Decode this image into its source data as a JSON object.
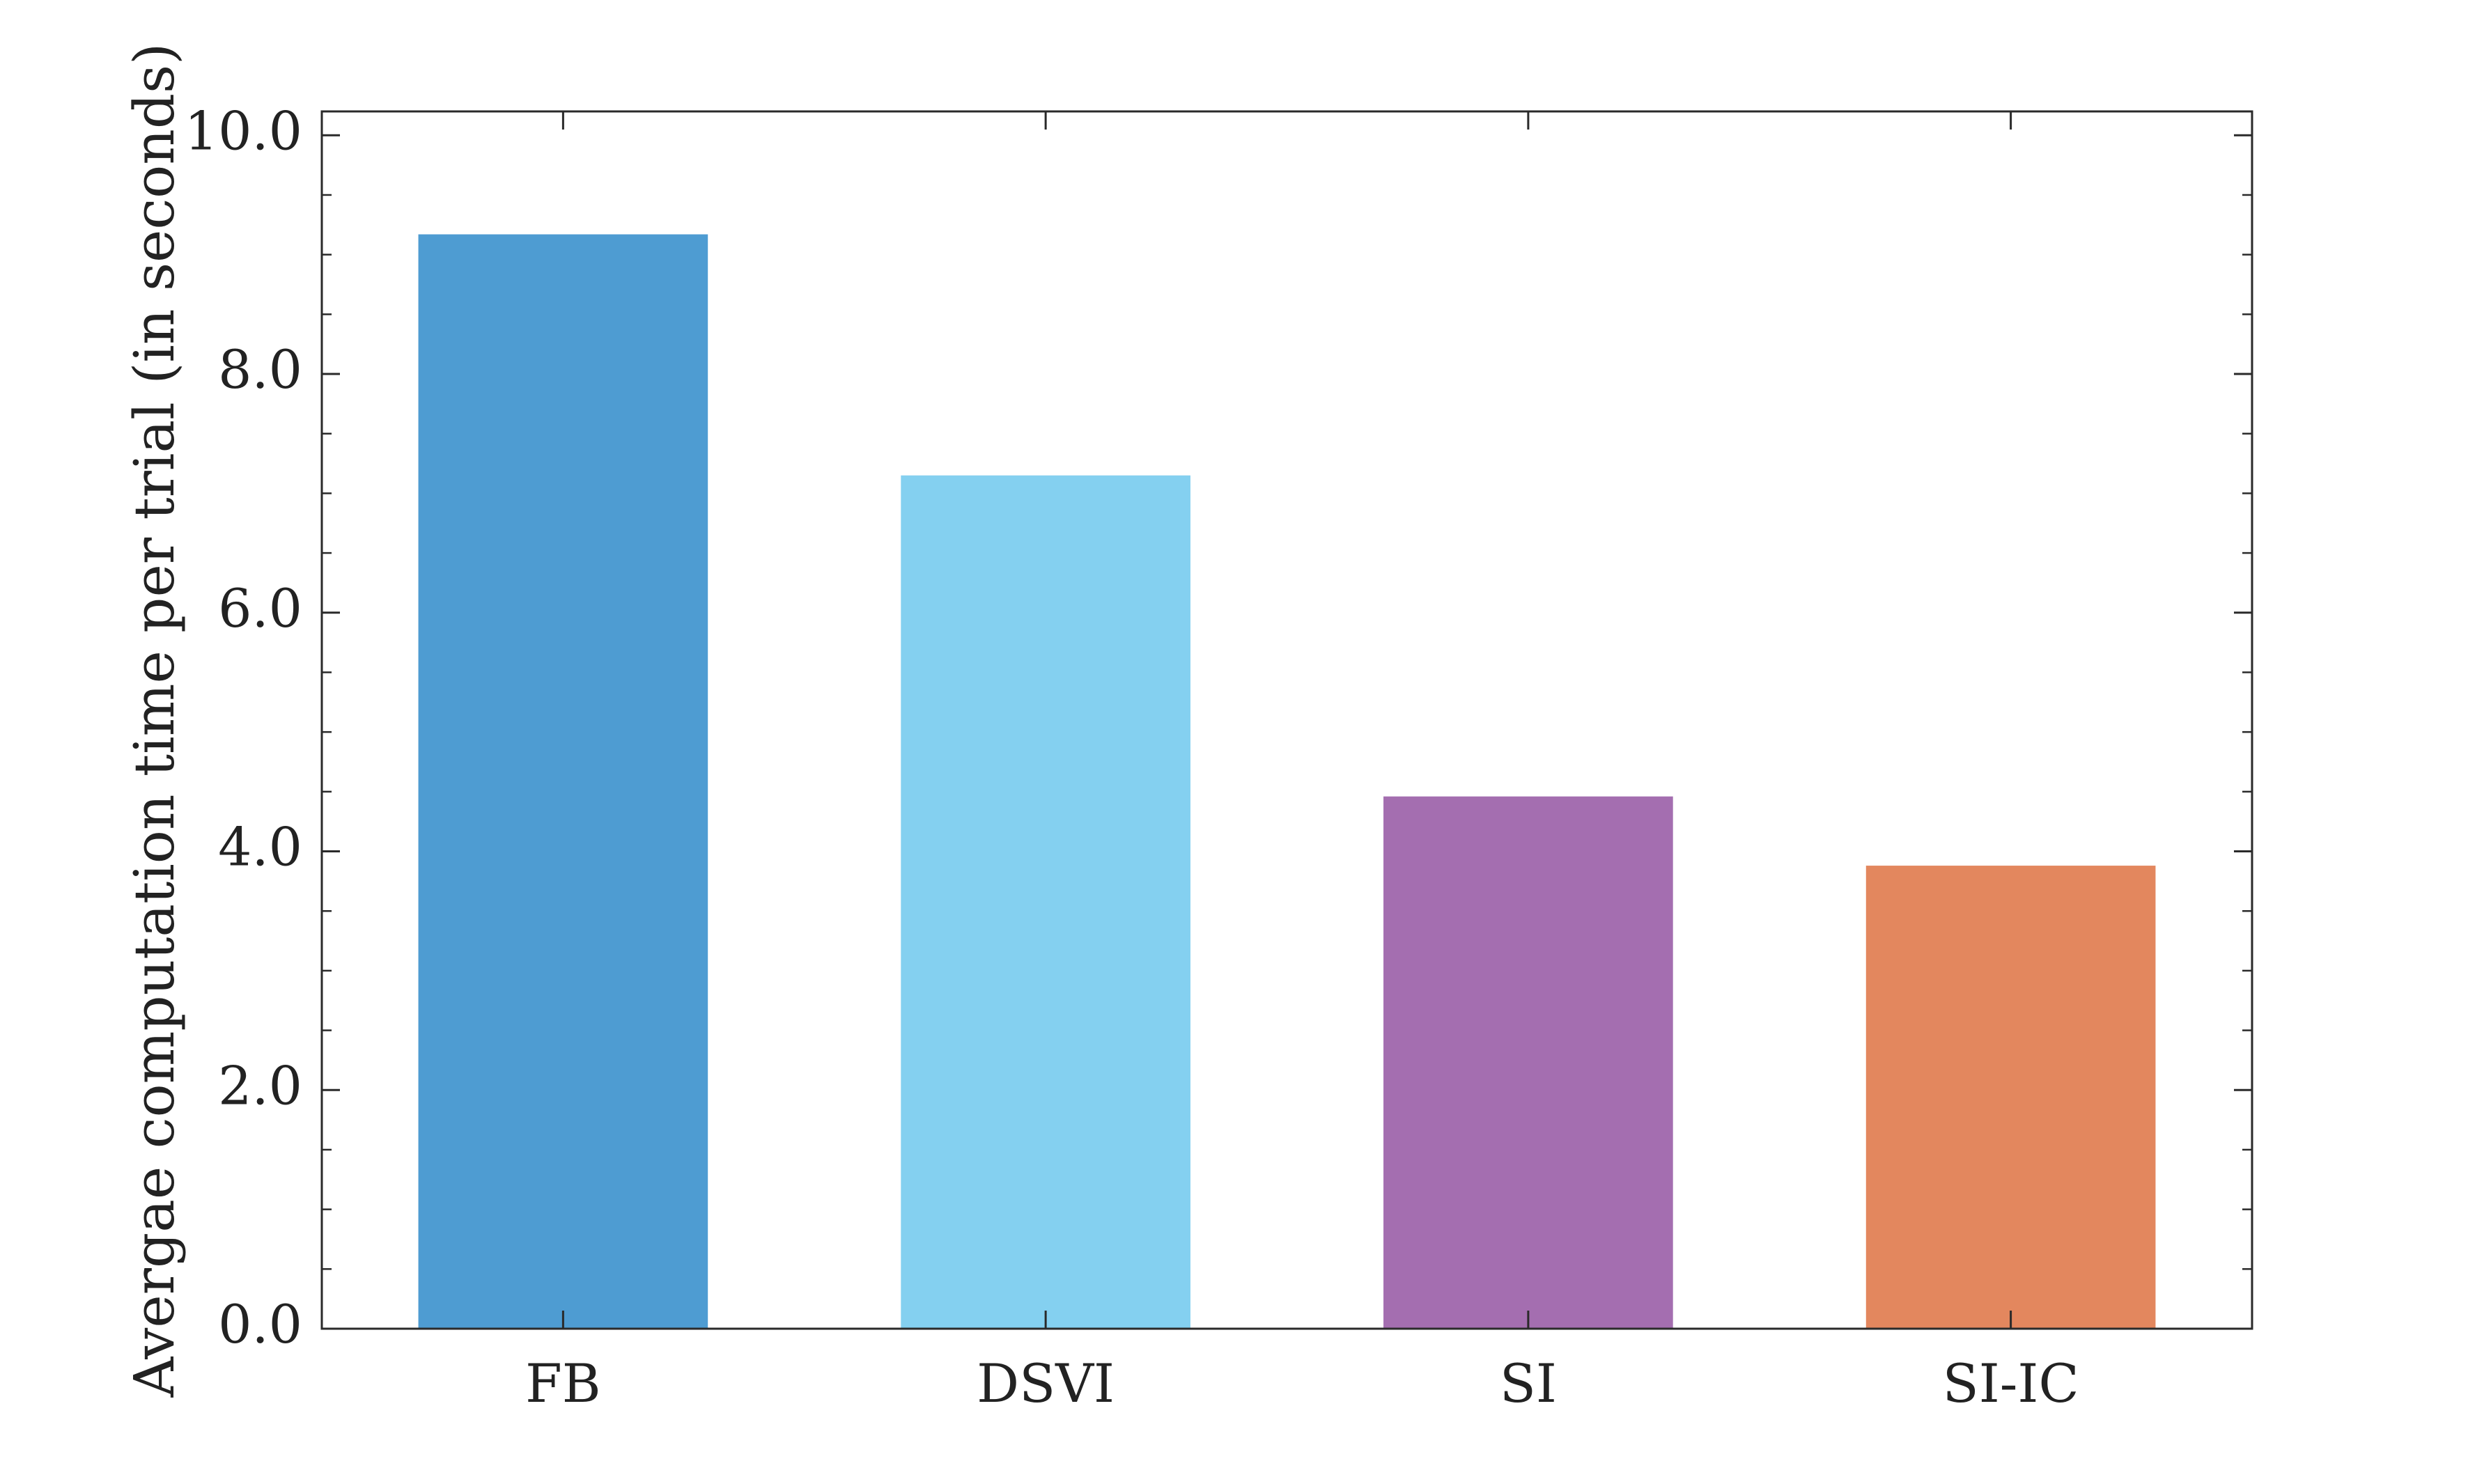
{
  "chart_data": {
    "type": "bar",
    "title": "",
    "xlabel": "",
    "ylabel": "Avergae computation time per trial (in seconds)",
    "categories": [
      "FB",
      "DSVI",
      "SI",
      "SI-IC"
    ],
    "values": [
      9.17,
      7.15,
      4.46,
      3.88
    ],
    "colors": [
      "#4e9cd2",
      "#84d0f0",
      "#a46eb0",
      "#e3875e"
    ],
    "ylim": [
      0.0,
      10.2
    ],
    "yticks": [
      0.0,
      2.0,
      4.0,
      6.0,
      8.0,
      10.0
    ],
    "ytick_labels": [
      "0.0",
      "2.0",
      "4.0",
      "6.0",
      "8.0",
      "10.0"
    ],
    "grid": false,
    "legend": "none"
  }
}
